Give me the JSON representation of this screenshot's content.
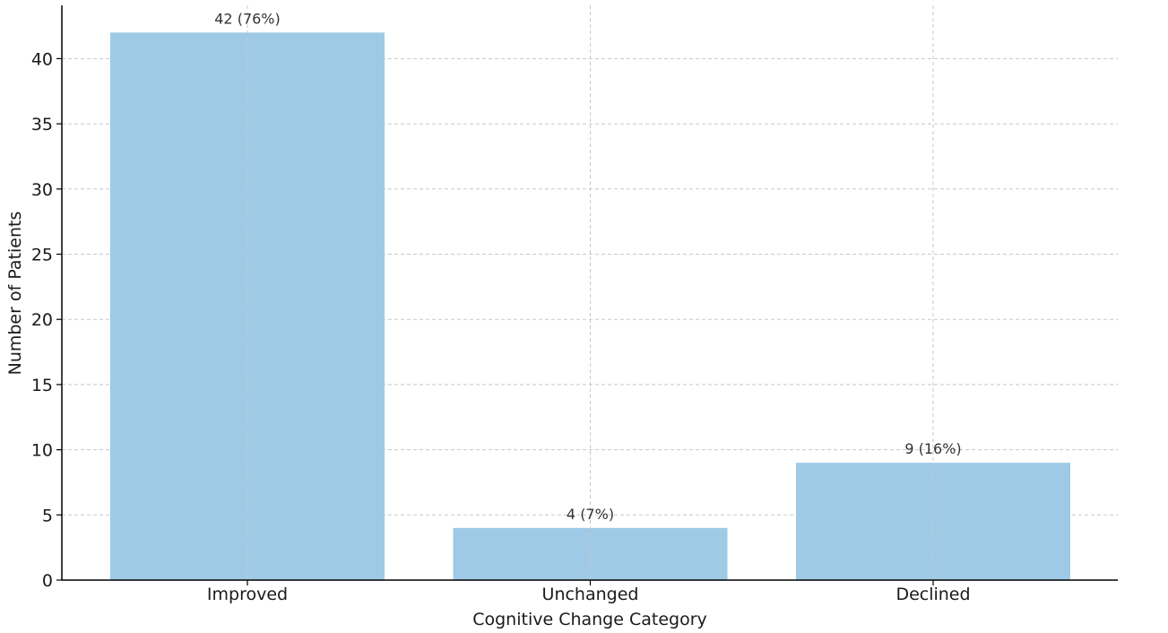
{
  "chart_data": {
    "type": "bar",
    "categories": [
      "Improved",
      "Unchanged",
      "Declined"
    ],
    "values": [
      42,
      4,
      9
    ],
    "data_labels": [
      "42 (76%)",
      "4 (7%)",
      "9 (16%)"
    ],
    "xlabel": "Cognitive Change Category",
    "ylabel": "Number of Patients",
    "ylim": [
      0,
      44
    ],
    "yticks": [
      0,
      5,
      10,
      15,
      20,
      25,
      30,
      35,
      40
    ],
    "grid": true,
    "bar_color": "#9ecae6"
  }
}
